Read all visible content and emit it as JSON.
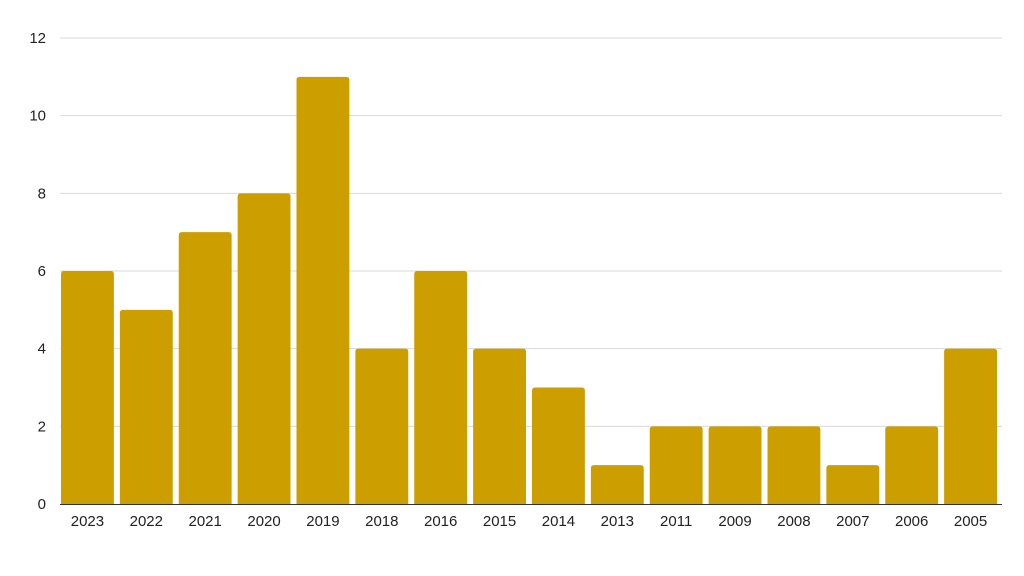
{
  "chart_data": {
    "type": "bar",
    "categories": [
      "2023",
      "2022",
      "2021",
      "2020",
      "2019",
      "2018",
      "2016",
      "2015",
      "2014",
      "2013",
      "2011",
      "2009",
      "2008",
      "2007",
      "2006",
      "2005"
    ],
    "values": [
      6,
      5,
      7,
      8,
      11,
      4,
      6,
      4,
      3,
      1,
      2,
      2,
      2,
      1,
      2,
      4
    ],
    "title": "",
    "xlabel": "",
    "ylabel": "",
    "ylim": [
      0,
      12
    ],
    "yticks": [
      0,
      2,
      4,
      6,
      8,
      10,
      12
    ],
    "grid": true,
    "legend": "none",
    "bar_color": "#CC9E00"
  }
}
